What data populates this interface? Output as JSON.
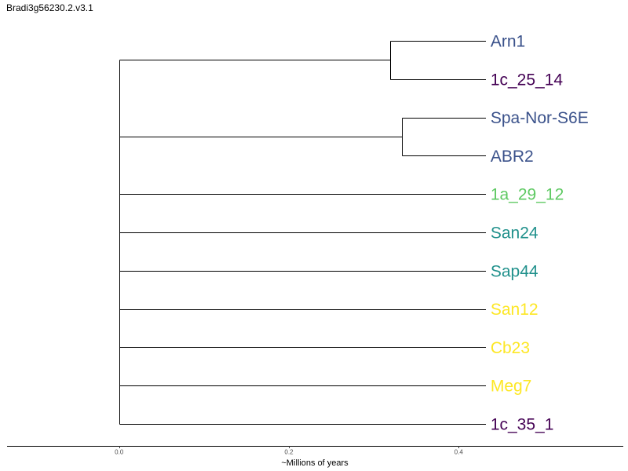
{
  "title": "Bradi3g56230.2.v3.1",
  "colors": {
    "branch": "#000000",
    "axis": "#000000"
  },
  "chart_data": {
    "type": "tree",
    "title": "Bradi3g56230.2.v3.1",
    "xlabel": "~Millions of years",
    "ylabel": "",
    "xlim": [
      -0.132,
      0.594
    ],
    "x_ticks": [
      {
        "value": 0.0,
        "label": "0.0"
      },
      {
        "value": 0.2,
        "label": "0.2"
      },
      {
        "value": 0.4,
        "label": "0.4"
      }
    ],
    "tip_x": 0.432,
    "root": {
      "x": 0.0,
      "children": [
        {
          "x": 0.319,
          "children": [
            {
              "label": "Arn1",
              "color": "#3b528b"
            },
            {
              "label": "1c_25_14",
              "color": "#440154"
            }
          ]
        },
        {
          "x": 0.333,
          "children": [
            {
              "label": "Spa-Nor-S6E",
              "color": "#3b528b"
            },
            {
              "label": "ABR2",
              "color": "#3b528b"
            }
          ]
        },
        {
          "label": "1a_29_12",
          "color": "#5ec962"
        },
        {
          "label": "San24",
          "color": "#21918c"
        },
        {
          "label": "Sap44",
          "color": "#21918c"
        },
        {
          "label": "San12",
          "color": "#fde725"
        },
        {
          "label": "Cb23",
          "color": "#fde725"
        },
        {
          "label": "Meg7",
          "color": "#fde725"
        },
        {
          "label": "1c_35_1",
          "color": "#440154"
        }
      ]
    }
  }
}
